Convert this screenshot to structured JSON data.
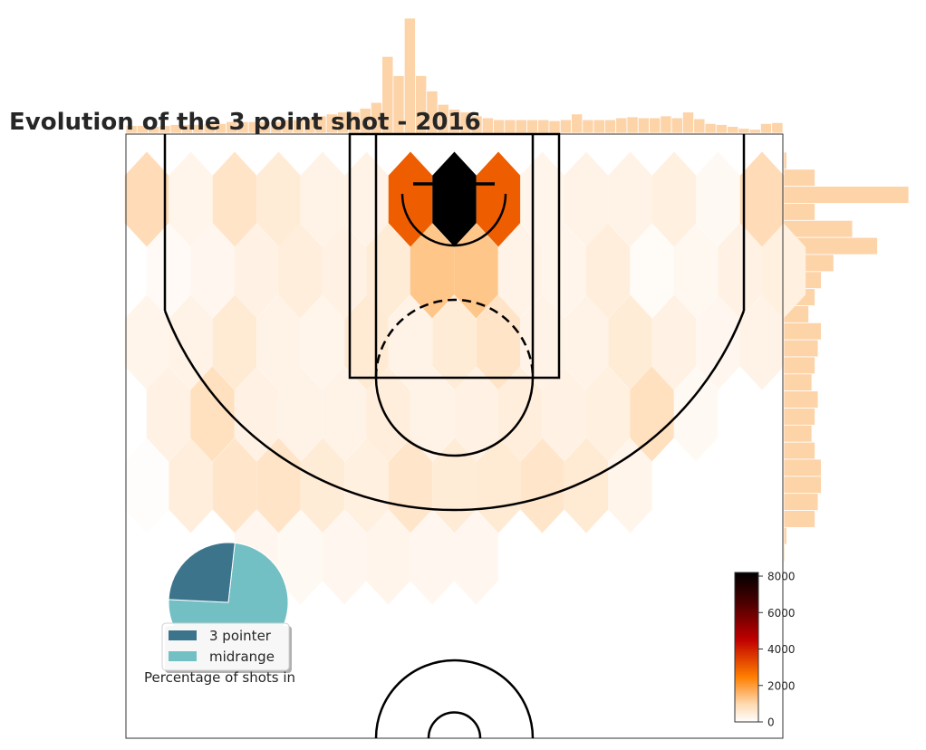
{
  "chart_data": {
    "type": "heatmap",
    "subtype": "hexbin shot chart with marginal histograms",
    "title": "Evolution of the 3 point shot - 2016",
    "colormap": [
      "#ffffff",
      "#ffd9b0",
      "#ff7f00",
      "#c00000",
      "#000000"
    ],
    "colorbar": {
      "min": 0,
      "max": 8200,
      "ticks": [
        0,
        2000,
        4000,
        6000,
        8000
      ],
      "tick_labels": [
        "0",
        "2000",
        "4000",
        "6000",
        "8000"
      ]
    },
    "hexbin": {
      "rows": [
        {
          "counts": [
            900,
            250,
            700,
            500,
            300,
            300,
            3000,
            8200,
            3000,
            250,
            300,
            300,
            400,
            150,
            900
          ]
        },
        {
          "counts": [
            120,
            200,
            350,
            450,
            350,
            500,
            1300,
            1300,
            300,
            250,
            450,
            100,
            180,
            350,
            400
          ]
        },
        {
          "counts": [
            250,
            300,
            550,
            300,
            250,
            550,
            300,
            500,
            700,
            300,
            300,
            500,
            350,
            200,
            300
          ]
        },
        {
          "counts": [
            350,
            800,
            350,
            300,
            300,
            450,
            300,
            350,
            450,
            350,
            400,
            800,
            150,
            0,
            0
          ]
        },
        {
          "counts": [
            50,
            450,
            650,
            700,
            500,
            400,
            650,
            500,
            550,
            650,
            550,
            250,
            0,
            0,
            0
          ]
        },
        {
          "counts": [
            0,
            0,
            200,
            150,
            200,
            250,
            200,
            200,
            0,
            0,
            0,
            0,
            0,
            0,
            0
          ]
        }
      ]
    },
    "top_histogram": {
      "values": [
        8,
        8,
        7,
        8,
        9,
        9,
        9,
        10,
        10,
        12,
        12,
        12,
        12,
        12,
        14,
        14,
        16,
        18,
        20,
        22,
        22,
        26,
        32,
        80,
        60,
        120,
        60,
        44,
        30,
        25,
        22,
        18,
        16,
        14,
        14,
        14,
        14,
        14,
        13,
        14,
        20,
        14,
        14,
        14,
        16,
        17,
        16,
        16,
        18,
        16,
        22,
        15,
        10,
        9,
        7,
        5,
        4,
        10,
        11
      ]
    },
    "right_histogram": {
      "values": [
        0.05,
        0.5,
        2.0,
        0.5,
        1.1,
        1.5,
        0.8,
        0.6,
        0.5,
        0.4,
        0.6,
        0.55,
        0.5,
        0.45,
        0.55,
        0.5,
        0.45,
        0.5,
        0.6,
        0.6,
        0.55,
        0.5,
        0.05,
        0.02
      ]
    },
    "pie": {
      "caption": "Percentage of shots in",
      "slices": [
        {
          "label": "3 pointer",
          "value": 26,
          "color": "#3c748c"
        },
        {
          "label": "midrange",
          "value": 74,
          "color": "#72bfc4"
        }
      ]
    }
  }
}
